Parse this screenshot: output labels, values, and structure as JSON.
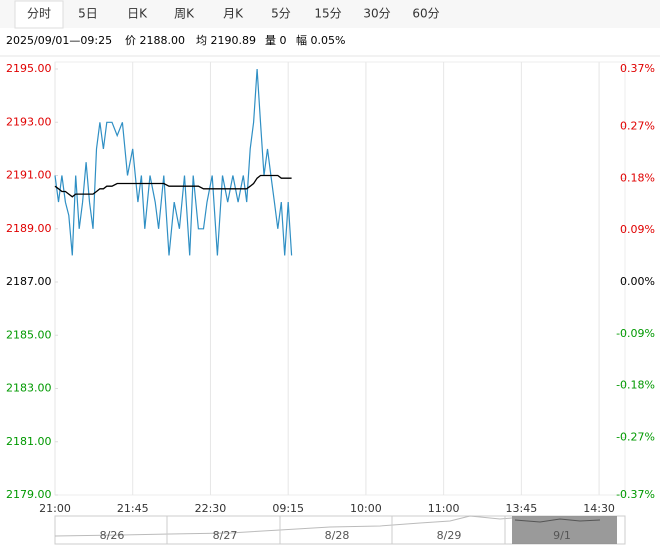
{
  "tabs": [
    "分时",
    "5日",
    "日K",
    "周K",
    "月K",
    "5分",
    "15分",
    "30分",
    "60分"
  ],
  "info": {
    "time": "2025/09/01—09:25",
    "price": "价 2188.00",
    "avg": "均 2190.89",
    "volume": "量 0",
    "change": "幅 0.05%"
  },
  "navigator": {
    "dates": [
      "8/26",
      "8/27",
      "8/28",
      "8/29",
      "9/1"
    ]
  },
  "chart_data": {
    "type": "line",
    "x": [
      0,
      2,
      4,
      6,
      8,
      10,
      12,
      14,
      16,
      18,
      20,
      22,
      24,
      26,
      28,
      30,
      33,
      36,
      39,
      42,
      45,
      48,
      50,
      52,
      55,
      58,
      60,
      63,
      66,
      69,
      72,
      75,
      78,
      80,
      83,
      86,
      88,
      91,
      94,
      97,
      100,
      103,
      106,
      109,
      111,
      113,
      115,
      117,
      119,
      121,
      123,
      125,
      127,
      129,
      131,
      133,
      135,
      137
    ],
    "series": [
      {
        "name": "价",
        "color": "#2f8fc4",
        "values": [
          2191,
          2190,
          2191,
          2190,
          2189.5,
          2188,
          2191,
          2189,
          2190,
          2191.5,
          2190,
          2189,
          2192,
          2193,
          2192,
          2193,
          2193,
          2192.5,
          2193,
          2191,
          2192,
          2190,
          2191,
          2189,
          2191,
          2190,
          2189,
          2191,
          2188,
          2190,
          2189,
          2191,
          2188,
          2191,
          2189,
          2189,
          2190,
          2191,
          2188,
          2191,
          2190,
          2191,
          2190,
          2191,
          2190,
          2192,
          2193,
          2195,
          2193,
          2191,
          2192,
          2191,
          2190,
          2189,
          2190,
          2188,
          2190,
          2188
        ]
      },
      {
        "name": "均",
        "color": "#000000",
        "values": [
          2190.6,
          2190.5,
          2190.4,
          2190.4,
          2190.3,
          2190.2,
          2190.3,
          2190.3,
          2190.3,
          2190.3,
          2190.3,
          2190.3,
          2190.4,
          2190.5,
          2190.5,
          2190.6,
          2190.6,
          2190.7,
          2190.7,
          2190.7,
          2190.7,
          2190.7,
          2190.7,
          2190.7,
          2190.7,
          2190.7,
          2190.7,
          2190.7,
          2190.6,
          2190.6,
          2190.6,
          2190.6,
          2190.6,
          2190.6,
          2190.6,
          2190.5,
          2190.5,
          2190.5,
          2190.5,
          2190.5,
          2190.5,
          2190.5,
          2190.5,
          2190.5,
          2190.5,
          2190.6,
          2190.7,
          2190.9,
          2191.0,
          2191.0,
          2191.0,
          2191.0,
          2191.0,
          2191.0,
          2190.9,
          2190.9,
          2190.9,
          2190.9
        ]
      }
    ],
    "xlim": [
      0,
      330
    ],
    "xticks": [
      {
        "value": 0,
        "label": "21:00"
      },
      {
        "value": 45,
        "label": "21:45"
      },
      {
        "value": 90,
        "label": "22:30"
      },
      {
        "value": 135,
        "label": "09:15"
      },
      {
        "value": 180,
        "label": "10:00"
      },
      {
        "value": 225,
        "label": "11:00"
      },
      {
        "value": 270,
        "label": "13:45"
      },
      {
        "value": 315,
        "label": "14:30"
      }
    ],
    "ylim": [
      2179,
      2195
    ],
    "yticks": [
      {
        "value": 2179,
        "label": "2179.00"
      },
      {
        "value": 2181,
        "label": "2181.00"
      },
      {
        "value": 2183,
        "label": "2183.00"
      },
      {
        "value": 2185,
        "label": "2185.00"
      },
      {
        "value": 2187,
        "label": "2187.00"
      },
      {
        "value": 2189,
        "label": "2189.00"
      },
      {
        "value": 2191,
        "label": "2191.00"
      },
      {
        "value": 2193,
        "label": "2193.00"
      },
      {
        "value": 2195,
        "label": "2195.00"
      }
    ],
    "y2lim": [
      -0.37,
      0.37
    ],
    "y2ticks": [
      {
        "value": -0.37,
        "label": "-0.37%"
      },
      {
        "value": -0.27,
        "label": "-0.27%"
      },
      {
        "value": -0.18,
        "label": "-0.18%"
      },
      {
        "value": -0.09,
        "label": "-0.09%"
      },
      {
        "value": 0,
        "label": "0.00%"
      },
      {
        "value": 0.09,
        "label": "0.09%"
      },
      {
        "value": 0.18,
        "label": "0.18%"
      },
      {
        "value": 0.27,
        "label": "0.27%"
      },
      {
        "value": 0.37,
        "label": "0.37%"
      }
    ],
    "grid": true,
    "up_color": "#e00000",
    "down_color": "#009900",
    "flat_color": "#000000"
  }
}
